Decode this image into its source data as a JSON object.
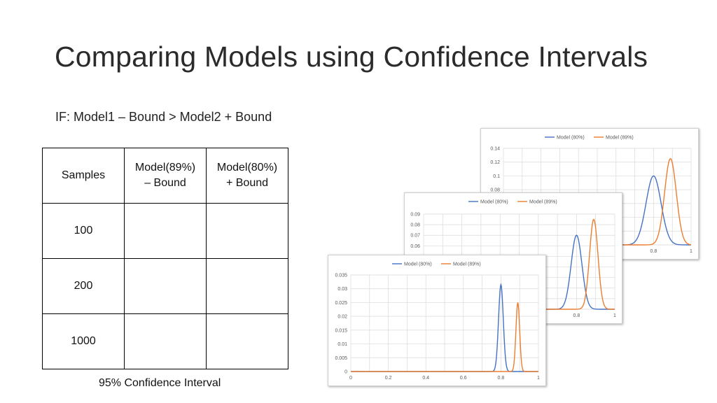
{
  "slide": {
    "title": "Comparing Models using Confidence Intervals",
    "rule": "IF: Model1 – Bound > Model2 + Bound",
    "caption": "95% Confidence Interval"
  },
  "table": {
    "headers": [
      "Samples",
      "Model(89%)\n– Bound",
      "Model(80%)\n+ Bound"
    ],
    "rows": [
      [
        "100",
        "",
        ""
      ],
      [
        "200",
        "",
        ""
      ],
      [
        "1000",
        "",
        ""
      ]
    ]
  },
  "colors": {
    "model80": "#4472c4",
    "model89": "#ed7d31",
    "grid": "#d9d9d9"
  },
  "chart_data": [
    {
      "type": "line",
      "panel": "back",
      "series": [
        {
          "name": "Model (80%)",
          "mean": 0.8,
          "sd": 0.04,
          "peak": 0.1
        },
        {
          "name": "Model (89%)",
          "mean": 0.89,
          "sd": 0.0313,
          "peak": 0.125
        }
      ],
      "xlim": [
        0,
        1
      ],
      "ylim": [
        0,
        0.14
      ],
      "y_ticks": [
        "0.14",
        "0.12",
        "0.1",
        "0.08"
      ],
      "x_ticks": [
        "0.8",
        "1"
      ],
      "legend": "top"
    },
    {
      "type": "line",
      "panel": "middle",
      "series": [
        {
          "name": "Model (80%)",
          "mean": 0.8,
          "sd": 0.0283,
          "peak": 0.07
        },
        {
          "name": "Model (89%)",
          "mean": 0.89,
          "sd": 0.0221,
          "peak": 0.085
        }
      ],
      "xlim": [
        0,
        1
      ],
      "ylim": [
        0,
        0.09
      ],
      "y_ticks": [
        "0.09",
        "0.08",
        "0.07",
        "0.06"
      ],
      "x_ticks": [
        "0.8",
        "1"
      ],
      "legend": "top"
    },
    {
      "type": "line",
      "panel": "front",
      "series": [
        {
          "name": "Model (80%)",
          "mean": 0.8,
          "sd": 0.0126,
          "peak": 0.0315
        },
        {
          "name": "Model (89%)",
          "mean": 0.89,
          "sd": 0.0099,
          "peak": 0.025
        }
      ],
      "xlim": [
        0,
        1
      ],
      "ylim": [
        0,
        0.035
      ],
      "y_ticks": [
        "0.035",
        "0.03",
        "0.025",
        "0.02",
        "0.015",
        "0.01",
        "0.005",
        "0"
      ],
      "x_ticks": [
        "0",
        "0.2",
        "0.4",
        "0.6",
        "0.8",
        "1"
      ],
      "legend": "top"
    }
  ]
}
